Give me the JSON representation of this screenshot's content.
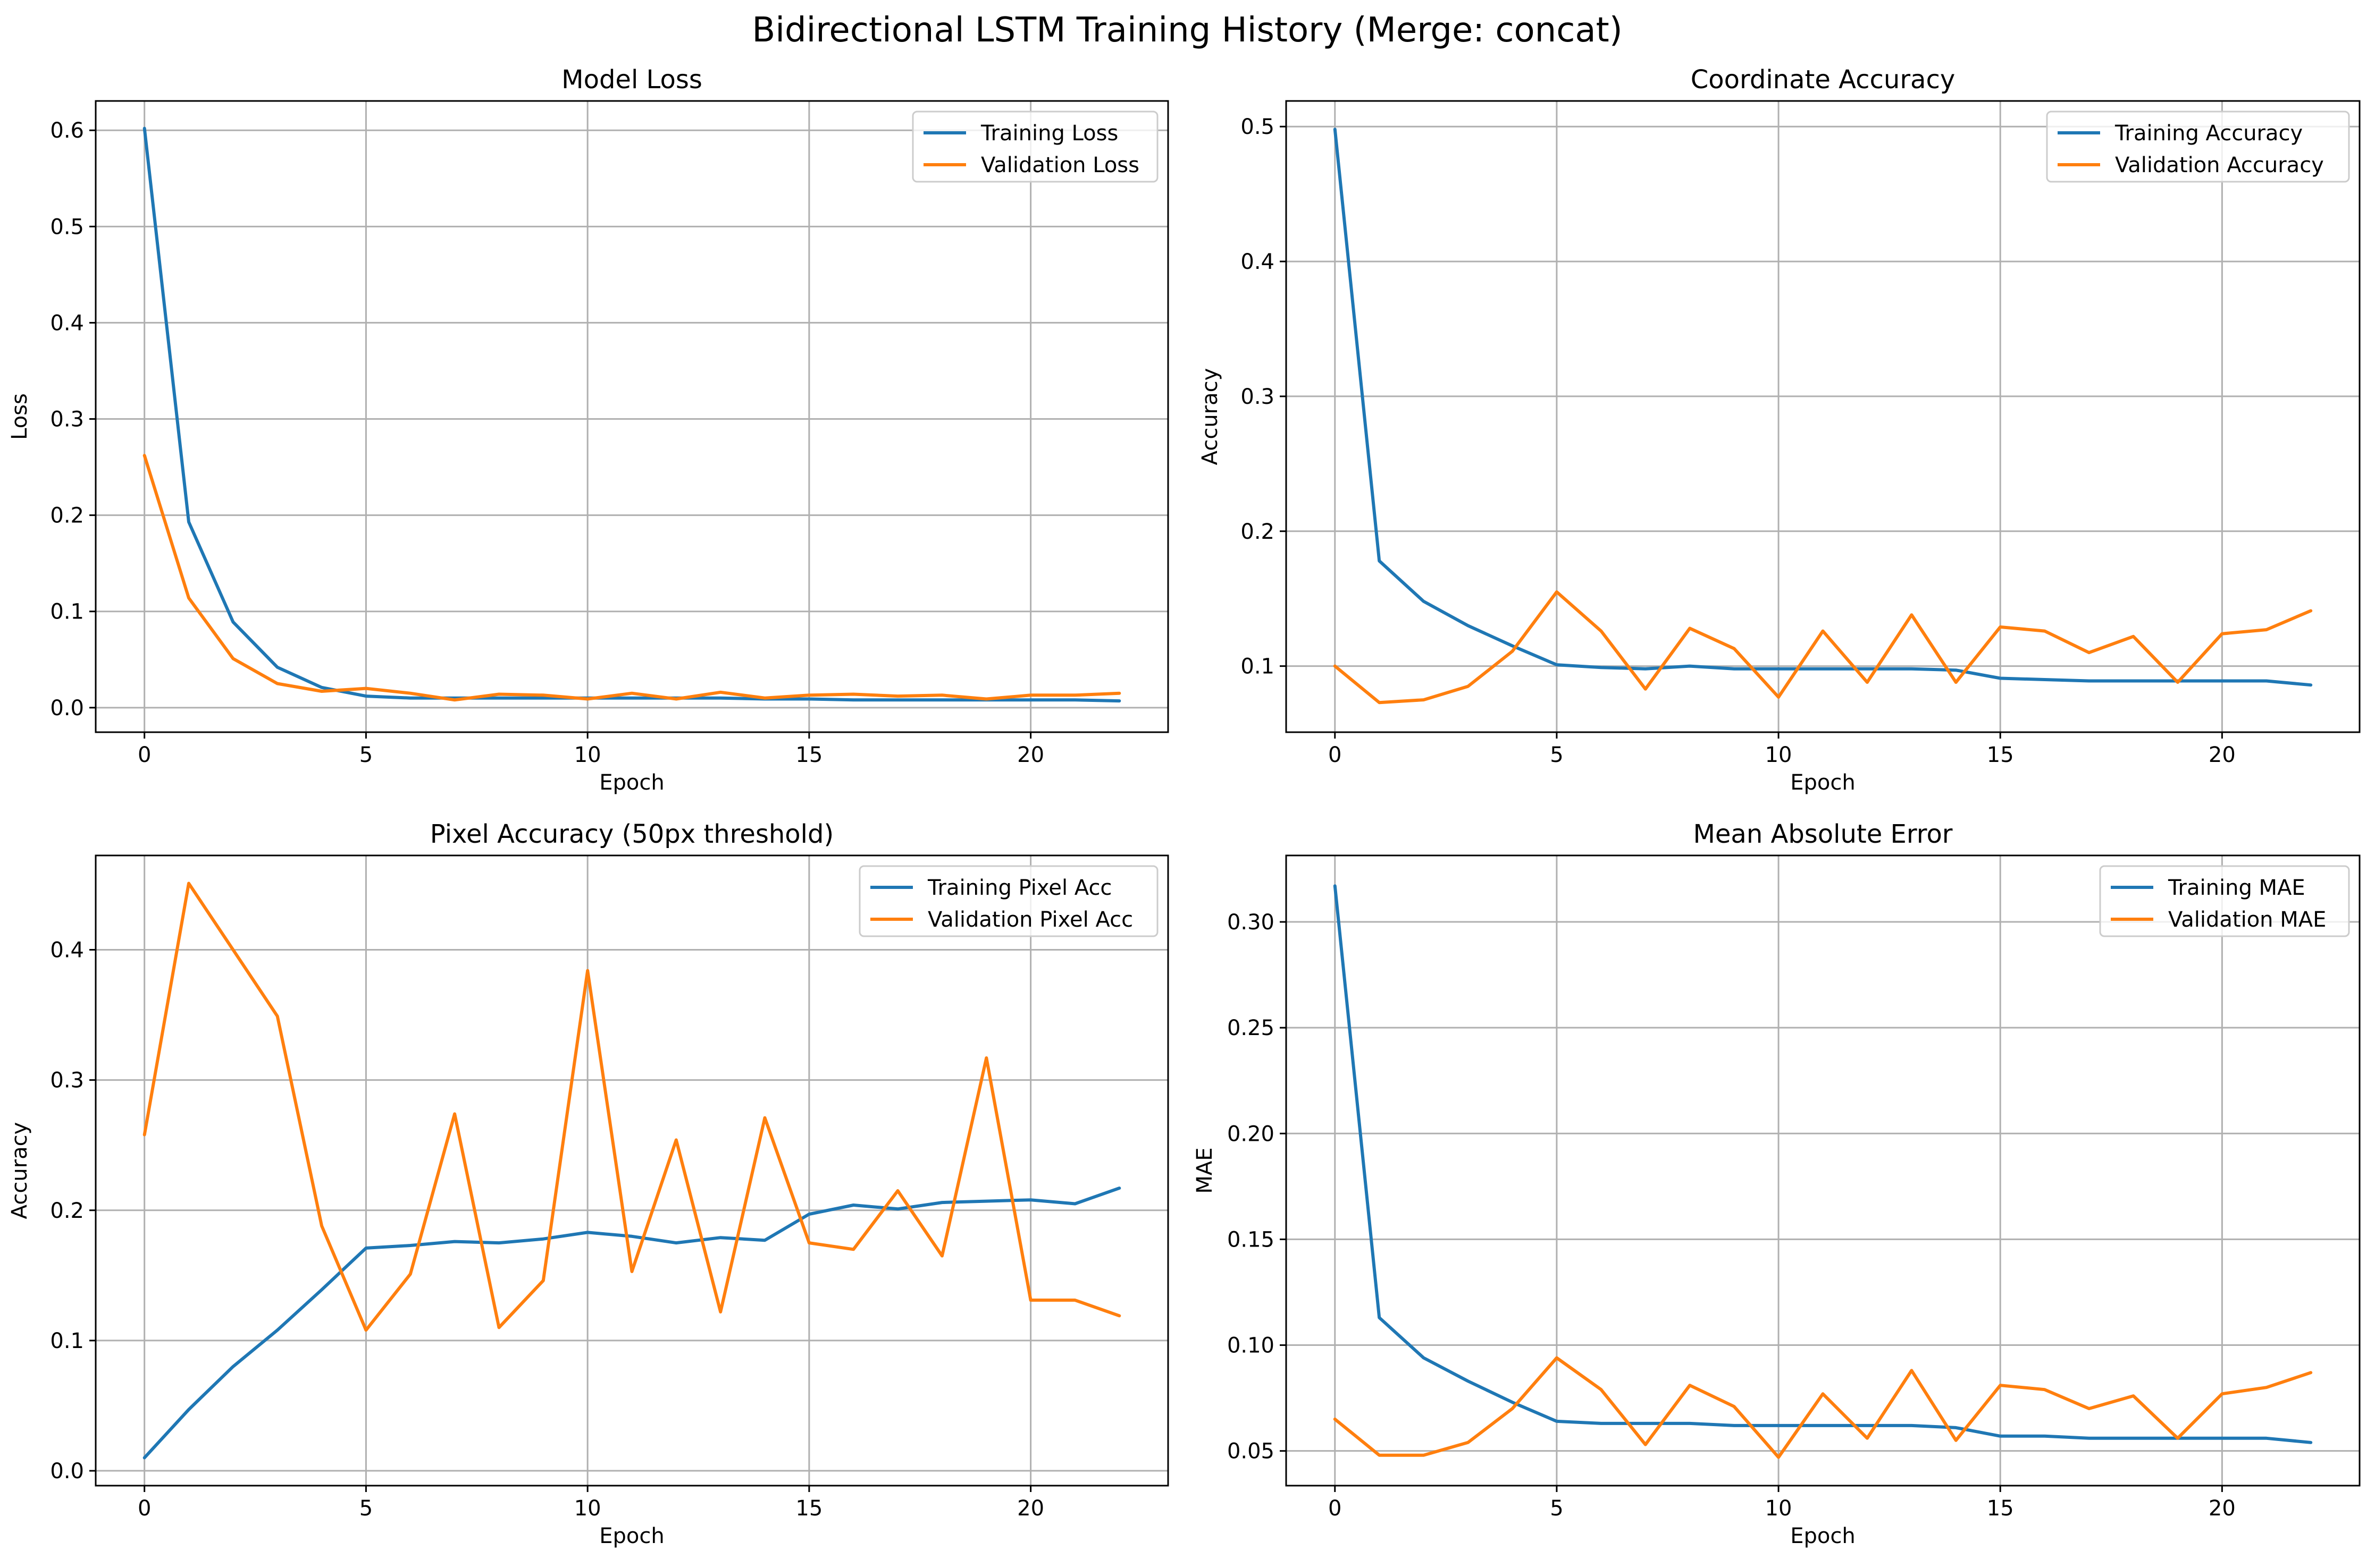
{
  "figure": {
    "suptitle": "Bidirectional LSTM Training History (Merge: concat)"
  },
  "colors": {
    "training": "#1f77b4",
    "validation": "#ff7f0e",
    "grid": "#b0b0b0",
    "axes": "#000000"
  },
  "chart_data": [
    {
      "type": "line",
      "title": "Model Loss",
      "xlabel": "Epoch",
      "ylabel": "Loss",
      "xlim": [
        -1.1,
        23.1
      ],
      "ylim": [
        -0.0255,
        0.6305
      ],
      "xticks": [
        0,
        5,
        10,
        15,
        20
      ],
      "xtick_labels": [
        "0",
        "5",
        "10",
        "15",
        "20"
      ],
      "yticks": [
        0.0,
        0.1,
        0.2,
        0.3,
        0.4,
        0.5,
        0.6
      ],
      "ytick_labels": [
        "0.0",
        "0.1",
        "0.2",
        "0.3",
        "0.4",
        "0.5",
        "0.6"
      ],
      "grid": true,
      "legend_position": "top-right",
      "x": [
        0,
        1,
        2,
        3,
        4,
        5,
        6,
        7,
        8,
        9,
        10,
        11,
        12,
        13,
        14,
        15,
        16,
        17,
        18,
        19,
        20,
        21,
        22
      ],
      "series": [
        {
          "name": "Training Loss",
          "values": [
            0.602,
            0.193,
            0.089,
            0.042,
            0.021,
            0.012,
            0.01,
            0.01,
            0.01,
            0.01,
            0.01,
            0.01,
            0.01,
            0.01,
            0.009,
            0.009,
            0.008,
            0.008,
            0.008,
            0.008,
            0.008,
            0.008,
            0.007
          ]
        },
        {
          "name": "Validation Loss",
          "values": [
            0.262,
            0.114,
            0.051,
            0.025,
            0.017,
            0.02,
            0.015,
            0.008,
            0.014,
            0.013,
            0.009,
            0.015,
            0.009,
            0.016,
            0.01,
            0.013,
            0.014,
            0.012,
            0.013,
            0.009,
            0.013,
            0.013,
            0.015
          ]
        }
      ]
    },
    {
      "type": "line",
      "title": "Coordinate Accuracy",
      "xlabel": "Epoch",
      "ylabel": "Accuracy",
      "xlim": [
        -1.1,
        23.1
      ],
      "ylim": [
        0.051,
        0.519
      ],
      "xticks": [
        0,
        5,
        10,
        15,
        20
      ],
      "xtick_labels": [
        "0",
        "5",
        "10",
        "15",
        "20"
      ],
      "yticks": [
        0.1,
        0.2,
        0.3,
        0.4,
        0.5
      ],
      "ytick_labels": [
        "0.1",
        "0.2",
        "0.3",
        "0.4",
        "0.5"
      ],
      "grid": true,
      "legend_position": "top-right",
      "x": [
        0,
        1,
        2,
        3,
        4,
        5,
        6,
        7,
        8,
        9,
        10,
        11,
        12,
        13,
        14,
        15,
        16,
        17,
        18,
        19,
        20,
        21,
        22
      ],
      "series": [
        {
          "name": "Training Accuracy",
          "values": [
            0.498,
            0.178,
            0.148,
            0.13,
            0.115,
            0.101,
            0.099,
            0.098,
            0.1,
            0.098,
            0.098,
            0.098,
            0.098,
            0.098,
            0.097,
            0.091,
            0.09,
            0.089,
            0.089,
            0.089,
            0.089,
            0.089,
            0.086
          ]
        },
        {
          "name": "Validation Accuracy",
          "values": [
            0.1,
            0.073,
            0.075,
            0.085,
            0.111,
            0.155,
            0.126,
            0.083,
            0.128,
            0.113,
            0.077,
            0.126,
            0.088,
            0.138,
            0.088,
            0.129,
            0.126,
            0.11,
            0.122,
            0.088,
            0.124,
            0.127,
            0.141
          ]
        }
      ]
    },
    {
      "type": "line",
      "title": "Pixel Accuracy (50px threshold)",
      "xlabel": "Epoch",
      "ylabel": "Accuracy",
      "xlim": [
        -1.1,
        23.1
      ],
      "ylim": [
        -0.0114,
        0.4724
      ],
      "xticks": [
        0,
        5,
        10,
        15,
        20
      ],
      "xtick_labels": [
        "0",
        "5",
        "10",
        "15",
        "20"
      ],
      "yticks": [
        0.0,
        0.1,
        0.2,
        0.3,
        0.4
      ],
      "ytick_labels": [
        "0.0",
        "0.1",
        "0.2",
        "0.3",
        "0.4"
      ],
      "grid": true,
      "legend_position": "top-right",
      "x": [
        0,
        1,
        2,
        3,
        4,
        5,
        6,
        7,
        8,
        9,
        10,
        11,
        12,
        13,
        14,
        15,
        16,
        17,
        18,
        19,
        20,
        21,
        22
      ],
      "series": [
        {
          "name": "Training Pixel Acc",
          "values": [
            0.01,
            0.047,
            0.08,
            0.108,
            0.139,
            0.171,
            0.173,
            0.176,
            0.175,
            0.178,
            0.183,
            0.18,
            0.175,
            0.179,
            0.177,
            0.197,
            0.204,
            0.201,
            0.206,
            0.207,
            0.208,
            0.205,
            0.217
          ]
        },
        {
          "name": "Validation Pixel Acc",
          "values": [
            0.258,
            0.451,
            0.4,
            0.349,
            0.188,
            0.108,
            0.151,
            0.274,
            0.11,
            0.146,
            0.384,
            0.153,
            0.254,
            0.122,
            0.271,
            0.175,
            0.17,
            0.215,
            0.165,
            0.317,
            0.131,
            0.131,
            0.119
          ]
        }
      ]
    },
    {
      "type": "line",
      "title": "Mean Absolute Error",
      "xlabel": "Epoch",
      "ylabel": "MAE",
      "xlim": [
        -1.1,
        23.1
      ],
      "ylim": [
        0.0336,
        0.3314
      ],
      "xticks": [
        0,
        5,
        10,
        15,
        20
      ],
      "xtick_labels": [
        "0",
        "5",
        "10",
        "15",
        "20"
      ],
      "yticks": [
        0.05,
        0.1,
        0.15,
        0.2,
        0.25,
        0.3
      ],
      "ytick_labels": [
        "0.05",
        "0.10",
        "0.15",
        "0.20",
        "0.25",
        "0.30"
      ],
      "grid": true,
      "legend_position": "top-right",
      "x": [
        0,
        1,
        2,
        3,
        4,
        5,
        6,
        7,
        8,
        9,
        10,
        11,
        12,
        13,
        14,
        15,
        16,
        17,
        18,
        19,
        20,
        21,
        22
      ],
      "series": [
        {
          "name": "Training MAE",
          "values": [
            0.317,
            0.113,
            0.094,
            0.083,
            0.073,
            0.064,
            0.063,
            0.063,
            0.063,
            0.062,
            0.062,
            0.062,
            0.062,
            0.062,
            0.061,
            0.057,
            0.057,
            0.056,
            0.056,
            0.056,
            0.056,
            0.056,
            0.054
          ]
        },
        {
          "name": "Validation MAE",
          "values": [
            0.065,
            0.048,
            0.048,
            0.054,
            0.07,
            0.094,
            0.079,
            0.053,
            0.081,
            0.071,
            0.047,
            0.077,
            0.056,
            0.088,
            0.055,
            0.081,
            0.079,
            0.07,
            0.076,
            0.056,
            0.077,
            0.08,
            0.087
          ]
        }
      ]
    }
  ]
}
